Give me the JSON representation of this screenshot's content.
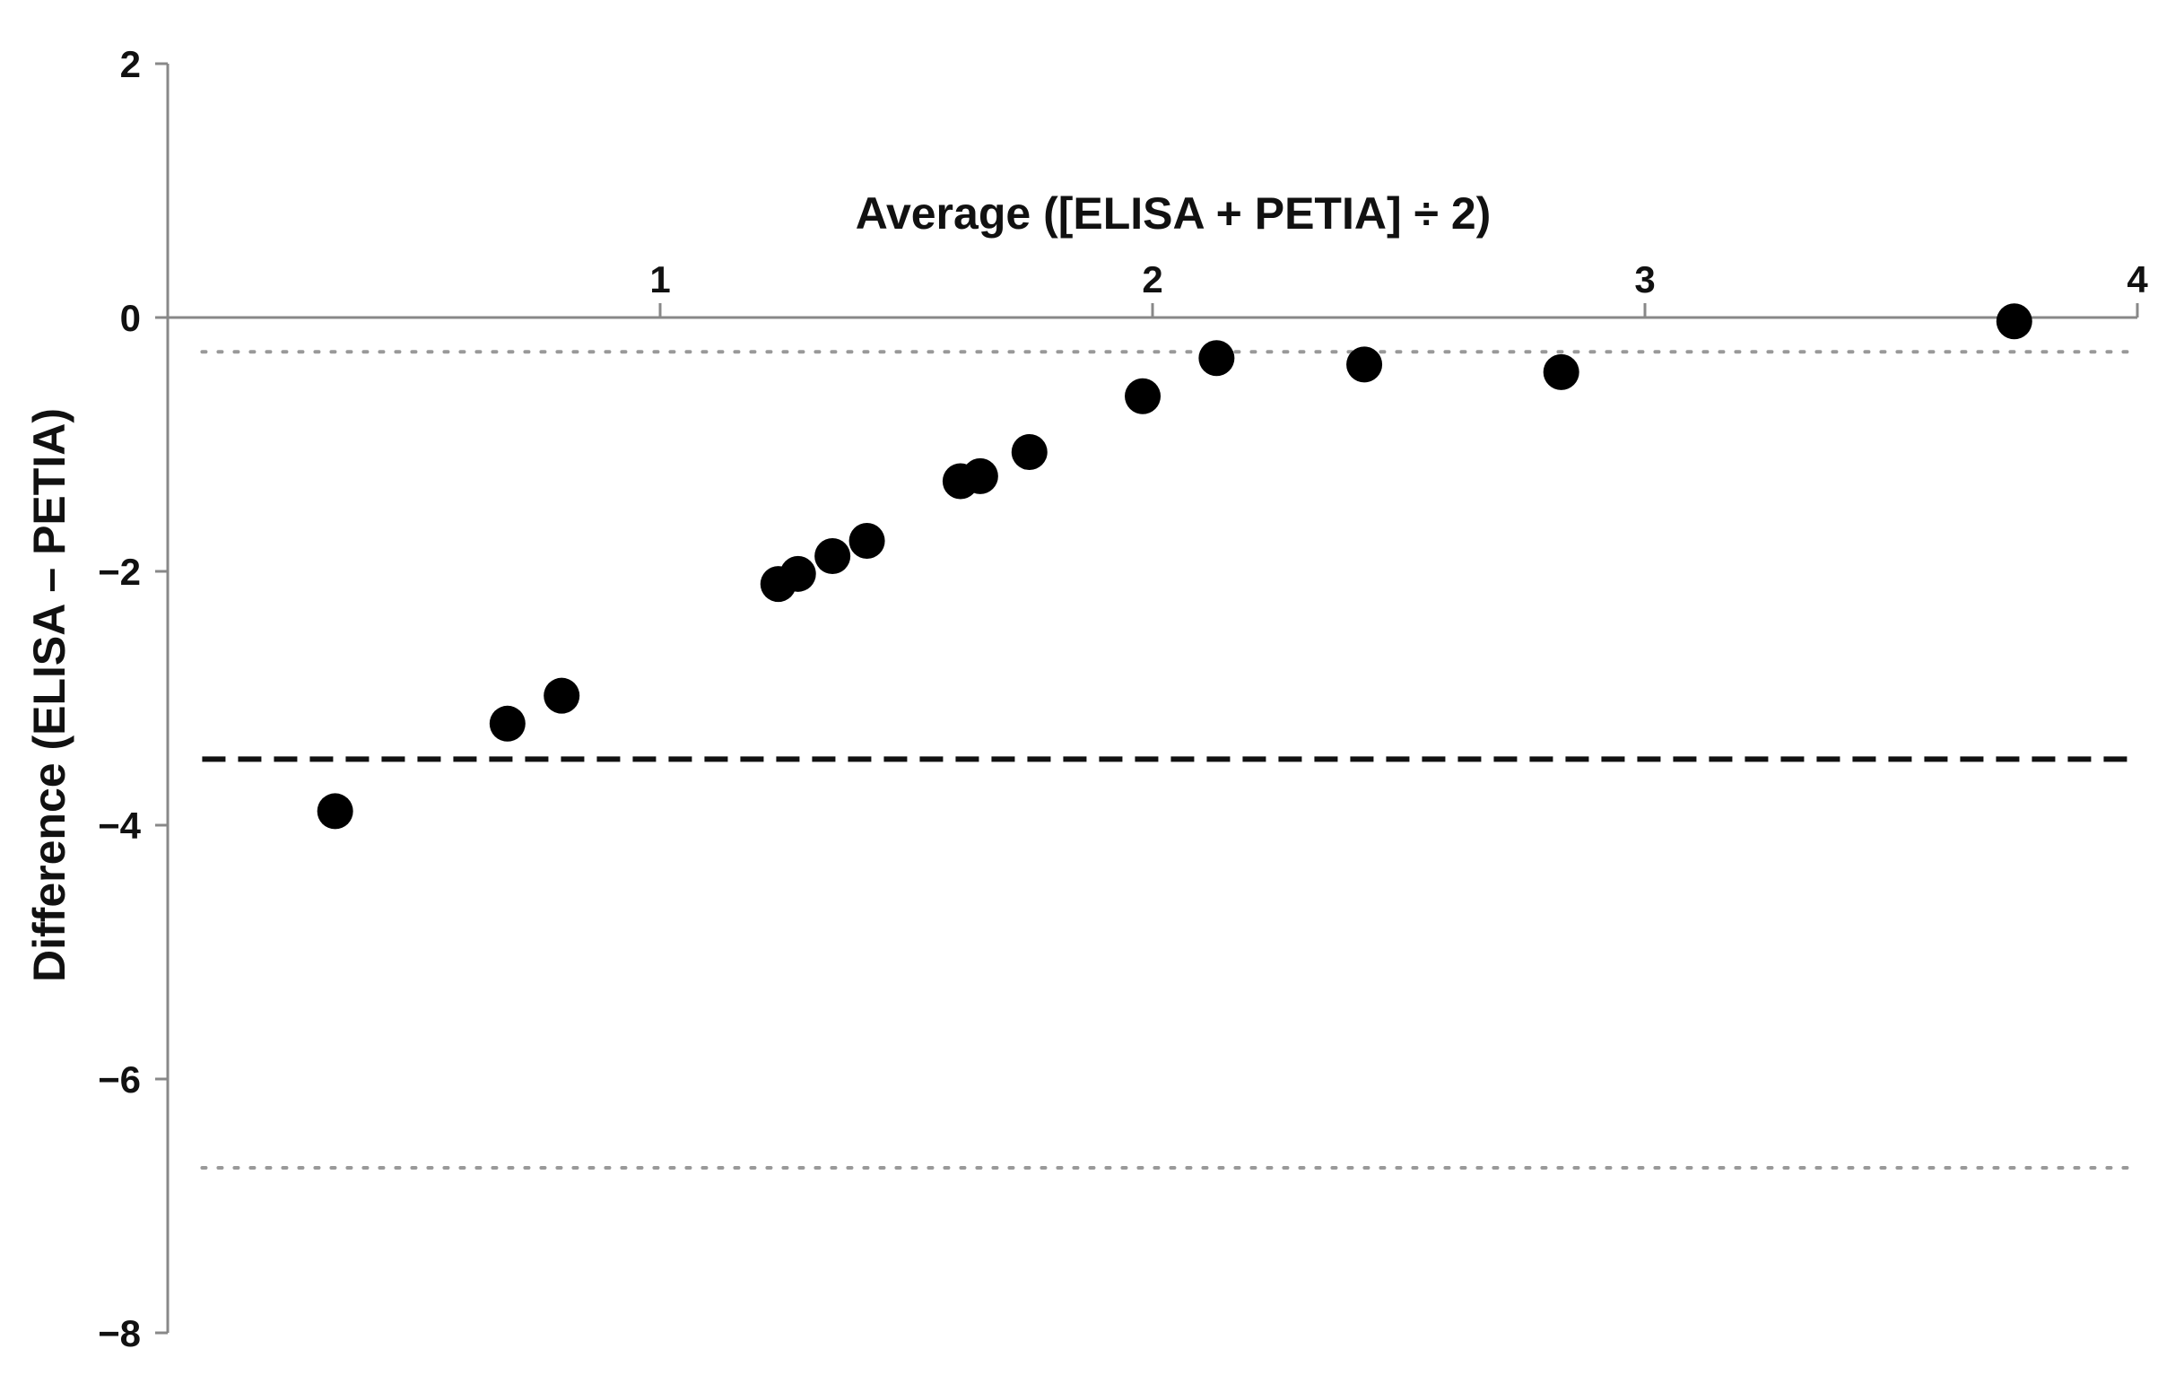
{
  "chart_data": {
    "type": "scatter",
    "title": "",
    "xlabel": "Average ([ELISA + PETIA] ÷ 2)",
    "ylabel": "Difference (ELISA – PETIA)",
    "xlim": [
      0,
      4
    ],
    "ylim": [
      -8,
      2
    ],
    "x_ticks": [
      {
        "value": 1,
        "label": "1"
      },
      {
        "value": 2,
        "label": "2"
      },
      {
        "value": 3,
        "label": "3"
      },
      {
        "value": 4,
        "label": "4"
      }
    ],
    "y_ticks": [
      {
        "value": 2,
        "label": "2"
      },
      {
        "value": 0,
        "label": "0"
      },
      {
        "value": -2,
        "label": "−2"
      },
      {
        "value": -4,
        "label": "−4"
      },
      {
        "value": -6,
        "label": "−6"
      },
      {
        "value": -8,
        "label": "−8"
      }
    ],
    "x_axis_position": "at y = 0 (labels above)",
    "grid": false,
    "reference_lines": [
      {
        "role": "mean difference",
        "style": "dashed",
        "y": -3.48
      },
      {
        "role": "upper limit of agreement",
        "style": "dotted",
        "y": -0.27
      },
      {
        "role": "lower limit of agreement",
        "style": "dotted",
        "y": -6.7
      }
    ],
    "series": [
      {
        "points": [
          {
            "x": 0.34,
            "y": -3.89
          },
          {
            "x": 0.69,
            "y": -3.2
          },
          {
            "x": 0.8,
            "y": -2.98
          },
          {
            "x": 1.24,
            "y": -2.1
          },
          {
            "x": 1.28,
            "y": -2.02
          },
          {
            "x": 1.35,
            "y": -1.88
          },
          {
            "x": 1.42,
            "y": -1.76
          },
          {
            "x": 1.61,
            "y": -1.29
          },
          {
            "x": 1.65,
            "y": -1.25
          },
          {
            "x": 1.75,
            "y": -1.06
          },
          {
            "x": 1.98,
            "y": -0.62
          },
          {
            "x": 2.13,
            "y": -0.32
          },
          {
            "x": 2.43,
            "y": -0.37
          },
          {
            "x": 2.83,
            "y": -0.43
          },
          {
            "x": 3.75,
            "y": -0.03
          }
        ]
      }
    ],
    "colors": {
      "points": "#000000",
      "axis": "#888888",
      "mean_line": "#111111",
      "limit_lines": "#999999"
    }
  }
}
